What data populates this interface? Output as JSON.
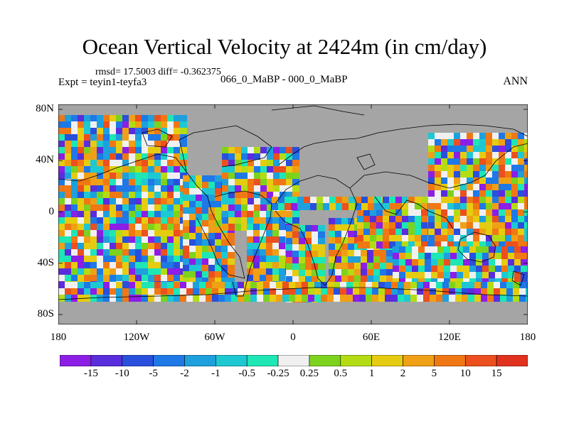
{
  "title": "Ocean Vertical Velocity at 2424m (in cm/day)",
  "stats": "rmsd= 17.5003 diff= -0.362375",
  "experiment": "Expt = teyin1-teyfa3",
  "case_label": "066_0_MaBP - 000_0_MaBP",
  "season": "ANN",
  "lat_labels": [
    "80N",
    "40N",
    "0",
    "40S",
    "80S"
  ],
  "lon_labels": [
    "180",
    "120W",
    "60W",
    "0",
    "60E",
    "120E",
    "180"
  ],
  "colorbar": {
    "colors": [
      "#8c1ee6",
      "#5a2ddc",
      "#2850dc",
      "#1e78e6",
      "#1ea0dc",
      "#1ec8d2",
      "#1ee6b4",
      "#f0f0f0",
      "#7dd21e",
      "#b4dc14",
      "#e6cc10",
      "#f0a014",
      "#f07814",
      "#eb501e",
      "#e1321e"
    ],
    "labels": [
      "-15",
      "-10",
      "-5",
      "-2",
      "-1",
      "-0.5",
      "-0.25",
      "0.25",
      "0.5",
      "1",
      "2",
      "5",
      "10",
      "15"
    ]
  },
  "colors": {
    "land": "#a5a5a5",
    "coast": "#000000"
  }
}
